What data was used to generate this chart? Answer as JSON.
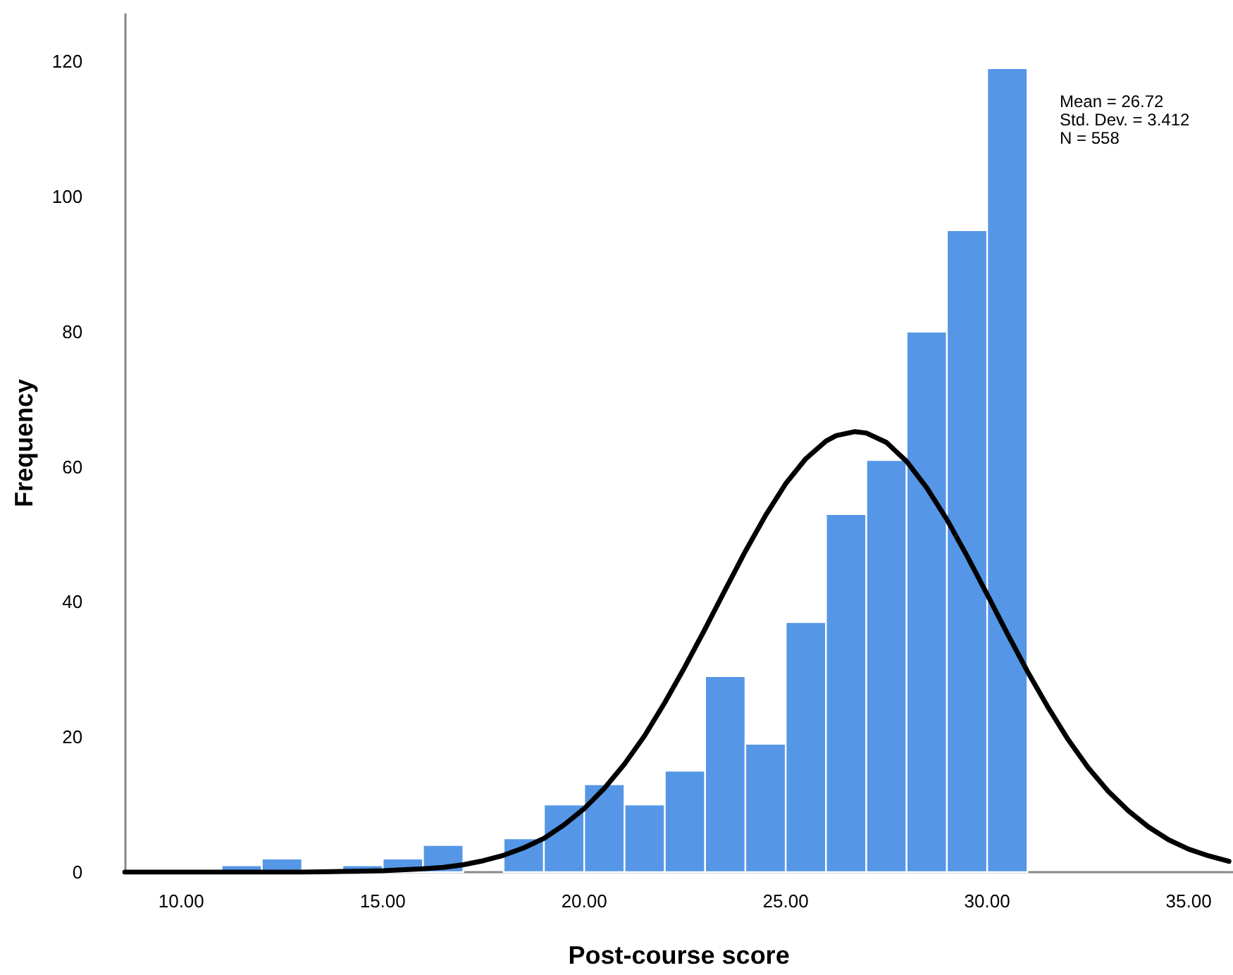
{
  "chart_data": {
    "type": "histogram",
    "xlabel": "Post-course score",
    "ylabel": "Frequency",
    "annotations": [
      "Mean = 26.72",
      "Std. Dev. = 3.412",
      "N = 558"
    ],
    "xlim": [
      8.6,
      36.1
    ],
    "ylim": [
      0,
      127
    ],
    "xticks": [
      {
        "value": 10,
        "label": "10.00"
      },
      {
        "value": 15,
        "label": "15.00"
      },
      {
        "value": 20,
        "label": "20.00"
      },
      {
        "value": 25,
        "label": "25.00"
      },
      {
        "value": 30,
        "label": "30.00"
      },
      {
        "value": 35,
        "label": "35.00"
      }
    ],
    "yticks": [
      0,
      20,
      40,
      60,
      80,
      100,
      120
    ],
    "grid": false,
    "series": [
      {
        "color": "#5596e6",
        "bins": [
          11,
          12,
          13,
          14,
          15,
          16,
          17,
          18,
          19,
          20,
          21,
          22,
          23,
          24,
          25,
          26,
          27,
          28,
          29,
          30,
          31
        ],
        "values": [
          1,
          2,
          0,
          1,
          2,
          4,
          0,
          5,
          10,
          13,
          10,
          15,
          29,
          19,
          37,
          53,
          61,
          80,
          95,
          119
        ]
      },
      {
        "type": "line",
        "color": "#000000",
        "marker": "none",
        "x": [
          8.6,
          10,
          11,
          12,
          13,
          14,
          15,
          16,
          16.5,
          17,
          17.5,
          18,
          18.5,
          19,
          19.5,
          20,
          20.5,
          21,
          21.5,
          22,
          22.5,
          23,
          23.5,
          24,
          24.5,
          25,
          25.5,
          26,
          26.25,
          26.72,
          27,
          27.5,
          28,
          28.5,
          29,
          29.5,
          30,
          30.5,
          31,
          31.5,
          32,
          32.5,
          33,
          33.5,
          34,
          34.5,
          35,
          35.5,
          36
        ],
        "values": [
          0,
          0,
          0,
          0,
          0,
          0.1,
          0.2,
          0.5,
          0.7,
          1.1,
          1.7,
          2.5,
          3.6,
          5.0,
          7.0,
          9.4,
          12.4,
          16.0,
          20.2,
          25.1,
          30.4,
          36.0,
          41.8,
          47.5,
          52.8,
          57.5,
          61.2,
          63.8,
          64.6,
          65.2,
          65.0,
          63.6,
          60.8,
          56.9,
          52.2,
          46.8,
          41.1,
          35.3,
          29.7,
          24.5,
          19.7,
          15.5,
          12.0,
          9.1,
          6.7,
          4.8,
          3.4,
          2.4,
          1.6
        ]
      }
    ]
  }
}
